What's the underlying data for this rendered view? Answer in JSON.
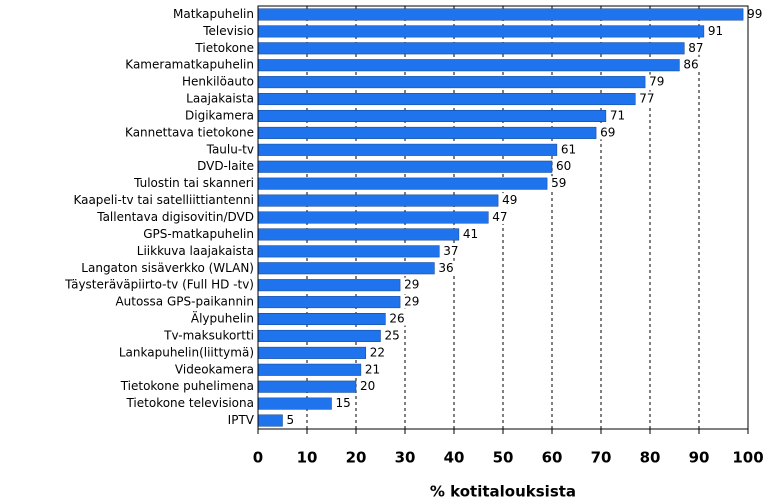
{
  "chart_data": {
    "type": "bar",
    "orientation": "horizontal",
    "x_label": "% kotitalouksista",
    "categories": [
      "Matkapuhelin",
      "Televisio",
      "Tietokone",
      "Kameramatkapuhelin",
      "Henkilöauto",
      "Laajakaista",
      "Digikamera",
      "Kannettava tietokone",
      "Taulu-tv",
      "DVD-laite",
      "Tulostin tai skanneri",
      "Kaapeli-tv tai satelliittiantenni",
      "Tallentava digisovitin/DVD",
      "GPS-matkapuhelin",
      "Liikkuva laajakaista",
      "Langaton sisäverkko (WLAN)",
      "Täysteräväpiirto-tv (Full HD -tv)",
      "Autossa GPS-paikannin",
      "Älypuhelin",
      "Tv-maksukortti",
      "Lankapuhelin(liittymä)",
      "Videokamera",
      "Tietokone puhelimena",
      "Tietokone televisiona",
      "IPTV"
    ],
    "values": [
      99,
      91,
      87,
      86,
      79,
      77,
      71,
      69,
      61,
      60,
      59,
      49,
      47,
      41,
      37,
      36,
      29,
      29,
      26,
      25,
      22,
      21,
      20,
      15,
      5
    ],
    "color": "#1f74ee",
    "xlim": [
      0,
      100
    ],
    "xticks": [
      0,
      10,
      20,
      30,
      40,
      50,
      60,
      70,
      80,
      90,
      100
    ],
    "grid": true
  }
}
